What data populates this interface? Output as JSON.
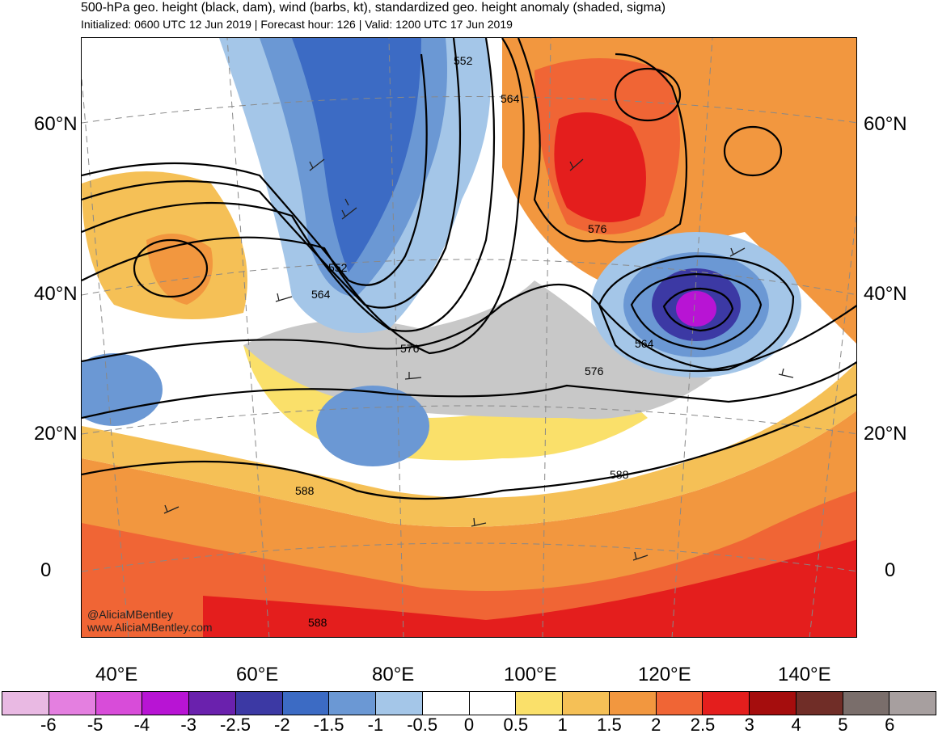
{
  "header": {
    "title": "500-hPa geo. height (black, dam), wind (barbs, kt), standardized geo. height anomaly (shaded, sigma)",
    "subtitle": "Initialized: 0600 UTC 12 Jun 2019 | Forecast hour: 126 | Valid: 1200 UTC 17 Jun 2019"
  },
  "map": {
    "latitude_labels_left": [
      "60°N",
      "40°N",
      "20°N",
      "0"
    ],
    "latitude_labels_right": [
      "60°N",
      "40°N",
      "20°N",
      "0"
    ],
    "longitude_labels": [
      "40°E",
      "60°E",
      "80°E",
      "100°E",
      "120°E",
      "140°E"
    ],
    "contour_labels": [
      "552",
      "564",
      "552",
      "564",
      "576",
      "576",
      "576",
      "564",
      "588",
      "588",
      "588"
    ],
    "credits": [
      "@AliciaMBentley",
      "www.AliciaMBentley.com"
    ]
  },
  "colorbar": {
    "colors": [
      "#e9b9e3",
      "#e47fe0",
      "#d84cd9",
      "#b814d4",
      "#6a21ad",
      "#3c39a4",
      "#3c6bc4",
      "#6b98d4",
      "#a4c6e8",
      "#ffffff",
      "#ffffff",
      "#fae06a",
      "#f5c056",
      "#f2973f",
      "#f06535",
      "#e41e1d",
      "#a50d0d",
      "#702d27",
      "#7a6e6b",
      "#a79f9f"
    ],
    "tick_labels": [
      "-6",
      "-5",
      "-4",
      "-3",
      "-2.5",
      "-2",
      "-1.5",
      "-1",
      "-0.5",
      "0",
      "0.5",
      "1",
      "1.5",
      "2",
      "2.5",
      "3",
      "4",
      "5",
      "6"
    ]
  }
}
